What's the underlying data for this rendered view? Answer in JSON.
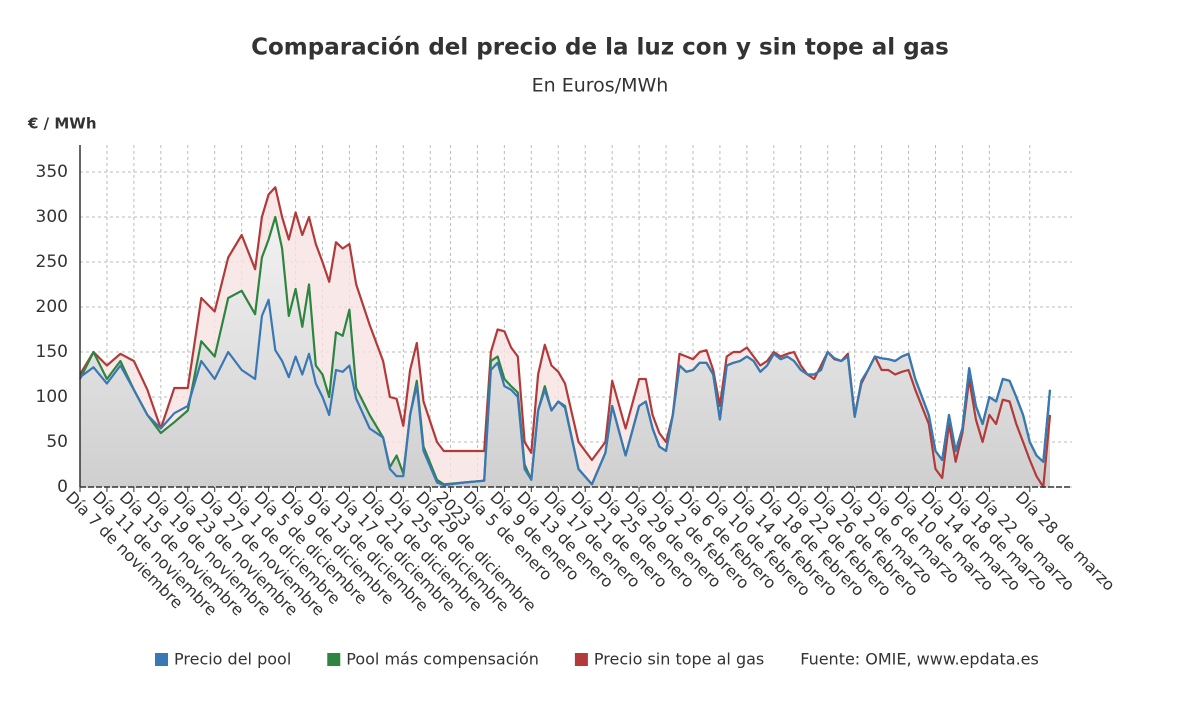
{
  "chart_data": {
    "type": "line",
    "title": "Comparación del precio de la luz con y sin tope al gas",
    "subtitle": "En Euros/MWh",
    "y_axis_label": "€ / MWh",
    "source": "Fuente: OMIE, www.epdata.es",
    "x": [
      "2022-11-07",
      "2022-11-09",
      "2022-11-11",
      "2022-11-13",
      "2022-11-15",
      "2022-11-17",
      "2022-11-19",
      "2022-11-21",
      "2022-11-23",
      "2022-11-25",
      "2022-11-27",
      "2022-11-29",
      "2022-12-01",
      "2022-12-03",
      "2022-12-04",
      "2022-12-05",
      "2022-12-06",
      "2022-12-07",
      "2022-12-08",
      "2022-12-09",
      "2022-12-10",
      "2022-12-11",
      "2022-12-12",
      "2022-12-13",
      "2022-12-14",
      "2022-12-15",
      "2022-12-16",
      "2022-12-17",
      "2022-12-18",
      "2022-12-20",
      "2022-12-22",
      "2022-12-23",
      "2022-12-24",
      "2022-12-25",
      "2022-12-26",
      "2022-12-27",
      "2022-12-28",
      "2022-12-30",
      "2022-12-31",
      "2023-01-03",
      "2023-01-06",
      "2023-01-07",
      "2023-01-08",
      "2023-01-09",
      "2023-01-10",
      "2023-01-11",
      "2023-01-12",
      "2023-01-13",
      "2023-01-14",
      "2023-01-15",
      "2023-01-16",
      "2023-01-17",
      "2023-01-18",
      "2023-01-20",
      "2023-01-22",
      "2023-01-24",
      "2023-01-25",
      "2023-01-27",
      "2023-01-29",
      "2023-01-30",
      "2023-01-31",
      "2023-02-01",
      "2023-02-02",
      "2023-02-03",
      "2023-02-04",
      "2023-02-05",
      "2023-02-06",
      "2023-02-07",
      "2023-02-08",
      "2023-02-09",
      "2023-02-10",
      "2023-02-11",
      "2023-02-12",
      "2023-02-13",
      "2023-02-14",
      "2023-02-15",
      "2023-02-16",
      "2023-02-17",
      "2023-02-18",
      "2023-02-19",
      "2023-02-20",
      "2023-02-21",
      "2023-02-22",
      "2023-02-23",
      "2023-02-24",
      "2023-02-25",
      "2023-02-26",
      "2023-02-27",
      "2023-02-28",
      "2023-03-01",
      "2023-03-02",
      "2023-03-03",
      "2023-03-04",
      "2023-03-05",
      "2023-03-06",
      "2023-03-07",
      "2023-03-08",
      "2023-03-09",
      "2023-03-10",
      "2023-03-11",
      "2023-03-13",
      "2023-03-14",
      "2023-03-15",
      "2023-03-16",
      "2023-03-17",
      "2023-03-18",
      "2023-03-19",
      "2023-03-20",
      "2023-03-21",
      "2023-03-22",
      "2023-03-23",
      "2023-03-24",
      "2023-03-25",
      "2023-03-26",
      "2023-03-27",
      "2023-03-28",
      "2023-03-29",
      "2023-03-30",
      "2023-03-31"
    ],
    "series": [
      {
        "name": "Precio del pool",
        "color": "#3a78b5",
        "values": [
          122,
          133,
          115,
          135,
          108,
          80,
          65,
          82,
          90,
          140,
          120,
          150,
          130,
          120,
          190,
          208,
          152,
          140,
          122,
          145,
          125,
          148,
          115,
          100,
          80,
          130,
          128,
          135,
          98,
          65,
          55,
          20,
          12,
          12,
          80,
          113,
          40,
          5,
          2,
          5,
          7,
          130,
          138,
          112,
          108,
          100,
          20,
          8,
          85,
          108,
          85,
          95,
          88,
          20,
          3,
          38,
          90,
          35,
          90,
          95,
          65,
          45,
          40,
          80,
          135,
          128,
          130,
          138,
          138,
          125,
          75,
          135,
          138,
          140,
          145,
          140,
          128,
          135,
          148,
          142,
          145,
          140,
          130,
          125,
          125,
          130,
          150,
          143,
          140,
          145,
          78,
          118,
          130,
          145,
          143,
          142,
          140,
          145,
          148,
          120,
          80,
          40,
          30,
          80,
          40,
          65,
          132,
          90,
          70,
          100,
          95,
          120,
          118,
          100,
          80,
          50,
          35,
          28,
          108
        ]
      },
      {
        "name": "Pool más compensación",
        "color": "#2e8540",
        "values": [
          120,
          150,
          120,
          140,
          108,
          80,
          60,
          72,
          85,
          162,
          145,
          210,
          218,
          192,
          255,
          275,
          300,
          265,
          190,
          220,
          178,
          225,
          135,
          125,
          100,
          172,
          168,
          197,
          110,
          80,
          55,
          22,
          35,
          15,
          80,
          118,
          45,
          8,
          3,
          5,
          7,
          140,
          145,
          120,
          112,
          105,
          25,
          8,
          85,
          112,
          85,
          95,
          90,
          20,
          3,
          38,
          90,
          35,
          90,
          95,
          65,
          45,
          40,
          80,
          135,
          128,
          130,
          138,
          138,
          125,
          75,
          135,
          138,
          140,
          145,
          140,
          128,
          135,
          148,
          142,
          145,
          140,
          130,
          125,
          125,
          130,
          150,
          143,
          140,
          145,
          78,
          118,
          130,
          145,
          143,
          142,
          140,
          145,
          148,
          120,
          80,
          40,
          30,
          80,
          40,
          65,
          132,
          90,
          70,
          100,
          95,
          120,
          118,
          100,
          80,
          50,
          35,
          28,
          108
        ]
      },
      {
        "name": "Precio sin tope al gas",
        "color": "#b23a3a",
        "values": [
          125,
          150,
          135,
          148,
          140,
          108,
          65,
          110,
          110,
          210,
          195,
          255,
          280,
          242,
          300,
          325,
          333,
          300,
          275,
          305,
          280,
          300,
          270,
          250,
          228,
          272,
          265,
          270,
          225,
          180,
          140,
          100,
          98,
          68,
          130,
          160,
          95,
          50,
          40,
          40,
          40,
          150,
          175,
          173,
          155,
          145,
          50,
          38,
          125,
          158,
          135,
          128,
          115,
          50,
          30,
          50,
          118,
          65,
          120,
          120,
          80,
          60,
          50,
          80,
          148,
          145,
          142,
          150,
          152,
          130,
          90,
          145,
          150,
          150,
          155,
          145,
          135,
          140,
          150,
          145,
          148,
          150,
          135,
          125,
          120,
          135,
          150,
          142,
          140,
          148,
          80,
          115,
          130,
          145,
          130,
          130,
          125,
          128,
          130,
          108,
          70,
          20,
          10,
          70,
          28,
          60,
          120,
          75,
          50,
          80,
          70,
          97,
          95,
          70,
          50,
          30,
          12,
          0,
          80
        ]
      }
    ],
    "xlim": [
      "2022-11-07",
      "2023-03-31"
    ],
    "xticks": [
      {
        "value": "2022-11-07",
        "label": "Día 7 de noviembre"
      },
      {
        "value": "2022-11-11",
        "label": "Día 11 de noviembre"
      },
      {
        "value": "2022-11-15",
        "label": "Día 15 de noviembre"
      },
      {
        "value": "2022-11-19",
        "label": "Día 19 de noviembre"
      },
      {
        "value": "2022-11-23",
        "label": "Día 23 de noviembre"
      },
      {
        "value": "2022-11-27",
        "label": "Día 27 de noviembre"
      },
      {
        "value": "2022-12-01",
        "label": "Día 1 de diciembre"
      },
      {
        "value": "2022-12-05",
        "label": "Día 5 de diciembre"
      },
      {
        "value": "2022-12-09",
        "label": "Día 9 de diciembre"
      },
      {
        "value": "2022-12-13",
        "label": "Día 13 de diciembre"
      },
      {
        "value": "2022-12-17",
        "label": "Día 17 de diciembre"
      },
      {
        "value": "2022-12-21",
        "label": "Día 21 de diciembre"
      },
      {
        "value": "2022-12-25",
        "label": "Día 25 de diciembre"
      },
      {
        "value": "2022-12-29",
        "label": "Día 29 de diciembre"
      },
      {
        "value": "2023-01-01",
        "label": "2023"
      },
      {
        "value": "2023-01-05",
        "label": "Día 5 de enero"
      },
      {
        "value": "2023-01-09",
        "label": "Día 9 de enero"
      },
      {
        "value": "2023-01-13",
        "label": "Día 13 de enero"
      },
      {
        "value": "2023-01-17",
        "label": "Día 17 de enero"
      },
      {
        "value": "2023-01-21",
        "label": "Día 21 de enero"
      },
      {
        "value": "2023-01-25",
        "label": "Día 25 de enero"
      },
      {
        "value": "2023-01-29",
        "label": "Día 29 de enero"
      },
      {
        "value": "2023-02-02",
        "label": "Día 2 de febrero"
      },
      {
        "value": "2023-02-06",
        "label": "Día 6 de febrero"
      },
      {
        "value": "2023-02-10",
        "label": "Día 10 de febrero"
      },
      {
        "value": "2023-02-14",
        "label": "Día 14 de febrero"
      },
      {
        "value": "2023-02-18",
        "label": "Día 18 de febrero"
      },
      {
        "value": "2023-02-22",
        "label": "Día 22 de febrero"
      },
      {
        "value": "2023-02-26",
        "label": "Día 26 de febrero"
      },
      {
        "value": "2023-03-02",
        "label": "Día 2 de marzo"
      },
      {
        "value": "2023-03-06",
        "label": "Día 6 de marzo"
      },
      {
        "value": "2023-03-10",
        "label": "Día 10 de marzo"
      },
      {
        "value": "2023-03-14",
        "label": "Día 14 de marzo"
      },
      {
        "value": "2023-03-18",
        "label": "Día 18 de marzo"
      },
      {
        "value": "2023-03-22",
        "label": "Día 22 de marzo"
      },
      {
        "value": "2023-03-28",
        "label": "Día 28 de marzo"
      }
    ],
    "ylim": [
      0,
      380
    ],
    "yticks": [
      0,
      50,
      100,
      150,
      200,
      250,
      300,
      350
    ],
    "grid": true
  }
}
